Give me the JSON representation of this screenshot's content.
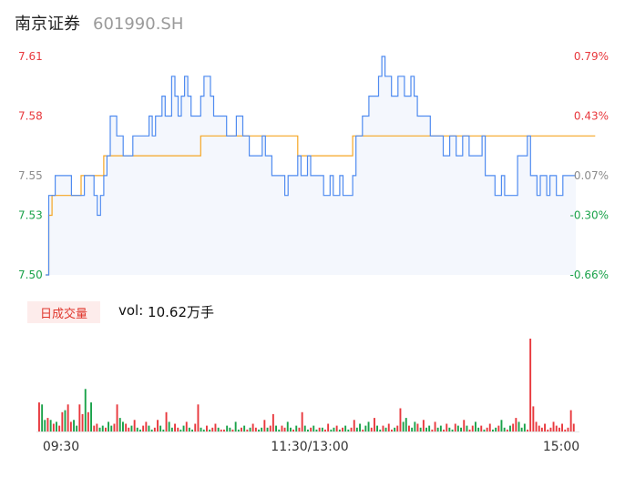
{
  "header": {
    "name": "南京证券",
    "code": "601990.SH"
  },
  "colors": {
    "up": "#e8383d",
    "down": "#1aa24a",
    "flat": "#8c8c8c",
    "price_line": "#4f8bf0",
    "avg_line": "#f5a623",
    "area_fill": "#f4f7fd"
  },
  "volume": {
    "tag": "日成交量",
    "prefix": "vol: ",
    "value": "10.62万手"
  },
  "chart_data": [
    {
      "type": "line",
      "prev_close": 7.55,
      "ylim": [
        7.5,
        7.61
      ],
      "y_ticks": [
        {
          "price": "7.61",
          "pct": "0.79%",
          "value": 7.61,
          "dir": "up"
        },
        {
          "price": "7.58",
          "pct": "0.43%",
          "value": 7.58,
          "dir": "up"
        },
        {
          "price": "7.55",
          "pct": "0.07%",
          "value": 7.55,
          "dir": "flat"
        },
        {
          "price": "7.53",
          "pct": "-0.30%",
          "value": 7.53,
          "dir": "down"
        },
        {
          "price": "7.50",
          "pct": "-0.66%",
          "value": 7.5,
          "dir": "down"
        }
      ],
      "x_ticks": [
        "09:30",
        "11:30/13:00",
        "15:00"
      ],
      "series": [
        {
          "values": [
            7.5,
            7.54,
            7.54,
            7.55,
            7.55,
            7.55,
            7.55,
            7.55,
            7.54,
            7.54,
            7.54,
            7.54,
            7.55,
            7.55,
            7.55,
            7.54,
            7.53,
            7.54,
            7.55,
            7.56,
            7.58,
            7.58,
            7.57,
            7.57,
            7.56,
            7.56,
            7.56,
            7.57,
            7.57,
            7.57,
            7.57,
            7.57,
            7.58,
            7.57,
            7.58,
            7.58,
            7.59,
            7.58,
            7.58,
            7.6,
            7.59,
            7.58,
            7.59,
            7.6,
            7.59,
            7.58,
            7.58,
            7.58,
            7.59,
            7.6,
            7.6,
            7.59,
            7.58,
            7.58,
            7.58,
            7.58,
            7.57,
            7.57,
            7.57,
            7.58,
            7.58,
            7.57,
            7.57,
            7.56,
            7.56,
            7.56,
            7.56,
            7.57,
            7.56,
            7.56,
            7.55,
            7.55,
            7.55,
            7.55,
            7.54,
            7.55,
            7.55,
            7.55,
            7.56,
            7.55,
            7.55,
            7.56,
            7.55,
            7.55,
            7.55,
            7.55,
            7.54,
            7.54,
            7.55,
            7.54,
            7.54,
            7.55,
            7.54,
            7.54,
            7.54,
            7.55,
            7.57,
            7.57,
            7.58,
            7.58,
            7.59,
            7.59,
            7.59,
            7.6,
            7.61,
            7.6,
            7.6,
            7.59,
            7.59,
            7.6,
            7.6,
            7.59,
            7.59,
            7.6,
            7.59,
            7.58,
            7.58,
            7.58,
            7.58,
            7.57,
            7.57,
            7.57,
            7.57,
            7.56,
            7.56,
            7.57,
            7.57,
            7.56,
            7.56,
            7.57,
            7.57,
            7.56,
            7.56,
            7.56,
            7.56,
            7.57,
            7.55,
            7.55,
            7.55,
            7.54,
            7.54,
            7.55,
            7.54,
            7.54,
            7.54,
            7.54,
            7.56,
            7.56,
            7.56,
            7.57,
            7.55,
            7.55,
            7.54,
            7.55,
            7.55,
            7.54,
            7.55,
            7.55,
            7.54,
            7.54,
            7.55,
            7.55,
            7.55,
            7.55,
            7.55
          ]
        },
        {
          "values": [
            7.5,
            7.53,
            7.54,
            7.54,
            7.54,
            7.54,
            7.54,
            7.54,
            7.54,
            7.54,
            7.54,
            7.55,
            7.55,
            7.55,
            7.55,
            7.55,
            7.55,
            7.55,
            7.56,
            7.56,
            7.56,
            7.56,
            7.56,
            7.56,
            7.56,
            7.56,
            7.56,
            7.56,
            7.56,
            7.56,
            7.56,
            7.56,
            7.56,
            7.56,
            7.56,
            7.56,
            7.56,
            7.56,
            7.56,
            7.56,
            7.56,
            7.56,
            7.56,
            7.56,
            7.56,
            7.56,
            7.56,
            7.56,
            7.57,
            7.57,
            7.57,
            7.57,
            7.57,
            7.57,
            7.57,
            7.57,
            7.57,
            7.57,
            7.57,
            7.57,
            7.57,
            7.57,
            7.57,
            7.57,
            7.57,
            7.57,
            7.57,
            7.57,
            7.57,
            7.57,
            7.57,
            7.57,
            7.57,
            7.57,
            7.57,
            7.57,
            7.57,
            7.57,
            7.56,
            7.56,
            7.56,
            7.56,
            7.56,
            7.56,
            7.56,
            7.56,
            7.56,
            7.56,
            7.56,
            7.56,
            7.56,
            7.56,
            7.56,
            7.56,
            7.56,
            7.57,
            7.57,
            7.57,
            7.57,
            7.57,
            7.57,
            7.57,
            7.57,
            7.57,
            7.57,
            7.57,
            7.57,
            7.57,
            7.57,
            7.57,
            7.57,
            7.57,
            7.57,
            7.57,
            7.57,
            7.57,
            7.57,
            7.57,
            7.57,
            7.57,
            7.57,
            7.57,
            7.57,
            7.57,
            7.57,
            7.57,
            7.57,
            7.57,
            7.57,
            7.57,
            7.57,
            7.57,
            7.57,
            7.57,
            7.57,
            7.57,
            7.57,
            7.57,
            7.57,
            7.57,
            7.57,
            7.57,
            7.57,
            7.57,
            7.57,
            7.57,
            7.57,
            7.57,
            7.57,
            7.57,
            7.57,
            7.57,
            7.57,
            7.57,
            7.57,
            7.57,
            7.57,
            7.57,
            7.57,
            7.57,
            7.57,
            7.57,
            7.57,
            7.57,
            7.57,
            7.57,
            7.57,
            7.57,
            7.57,
            7.57,
            7.57
          ]
        }
      ]
    },
    {
      "type": "bar",
      "values": [
        30,
        28,
        12,
        14,
        12,
        8,
        10,
        6,
        20,
        22,
        28,
        10,
        12,
        6,
        28,
        18,
        44,
        20,
        30,
        6,
        8,
        4,
        6,
        4,
        10,
        6,
        8,
        28,
        14,
        10,
        8,
        4,
        6,
        12,
        4,
        2,
        6,
        10,
        6,
        2,
        4,
        12,
        6,
        2,
        20,
        10,
        4,
        8,
        4,
        2,
        6,
        10,
        4,
        2,
        8,
        28,
        4,
        2,
        6,
        2,
        4,
        8,
        4,
        2,
        2,
        6,
        4,
        2,
        10,
        2,
        4,
        6,
        2,
        4,
        8,
        4,
        2,
        4,
        12,
        4,
        6,
        18,
        6,
        2,
        6,
        4,
        10,
        4,
        2,
        6,
        4,
        20,
        6,
        2,
        4,
        6,
        2,
        4,
        4,
        2,
        8,
        2,
        4,
        6,
        2,
        4,
        6,
        2,
        4,
        12,
        4,
        8,
        2,
        6,
        10,
        4,
        14,
        6,
        2,
        6,
        4,
        8,
        2,
        4,
        6,
        24,
        10,
        14,
        6,
        4,
        10,
        8,
        4,
        12,
        4,
        6,
        2,
        10,
        4,
        6,
        2,
        8,
        4,
        2,
        8,
        6,
        4,
        12,
        6,
        2,
        6,
        10,
        4,
        6,
        2,
        4,
        8,
        2,
        4,
        6,
        12,
        4,
        2,
        6,
        8,
        14,
        10,
        4,
        8,
        2,
        96,
        26,
        10,
        6,
        4,
        8,
        2,
        4,
        10,
        6,
        4,
        8,
        2,
        4,
        22,
        8
      ],
      "colors": "uddududuuduudduududuuddudduudduududduudduuddudduuddudduudduduuduudduddududuudduduudduudduduuddudduduuddududduuddudduudduduuduudduddududduudduuddudduduudduduuddudduduudddu"
    }
  ]
}
